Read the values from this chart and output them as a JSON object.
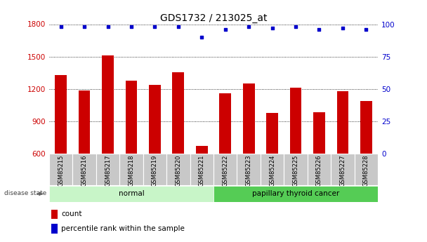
{
  "title": "GDS1732 / 213025_at",
  "samples": [
    "GSM85215",
    "GSM85216",
    "GSM85217",
    "GSM85218",
    "GSM85219",
    "GSM85220",
    "GSM85221",
    "GSM85222",
    "GSM85223",
    "GSM85224",
    "GSM85225",
    "GSM85226",
    "GSM85227",
    "GSM85228"
  ],
  "counts": [
    1330,
    1185,
    1510,
    1275,
    1240,
    1355,
    670,
    1160,
    1250,
    980,
    1210,
    985,
    1180,
    1090
  ],
  "percentile_ranks": [
    98,
    98,
    98,
    98,
    98,
    98,
    90,
    96,
    98,
    97,
    98,
    96,
    97,
    96
  ],
  "groups": [
    {
      "label": "normal",
      "start": 0,
      "end": 7,
      "color": "#c8f5c8"
    },
    {
      "label": "papillary thyroid cancer",
      "start": 7,
      "end": 14,
      "color": "#55cc55"
    }
  ],
  "bar_color": "#cc0000",
  "dot_color": "#0000cc",
  "ylim_left": [
    600,
    1800
  ],
  "ylim_right": [
    0,
    100
  ],
  "yticks_left": [
    600,
    900,
    1200,
    1500,
    1800
  ],
  "yticks_right": [
    0,
    25,
    50,
    75,
    100
  ],
  "ylabel_left_color": "#cc0000",
  "ylabel_right_color": "#0000cc",
  "legend_count_label": "count",
  "legend_pct_label": "percentile rank within the sample",
  "disease_state_label": "disease state",
  "title_fontsize": 10,
  "tick_label_fontsize": 7.5,
  "bar_width": 0.5,
  "xtick_gray": "#c8c8c8",
  "dot_size": 12
}
